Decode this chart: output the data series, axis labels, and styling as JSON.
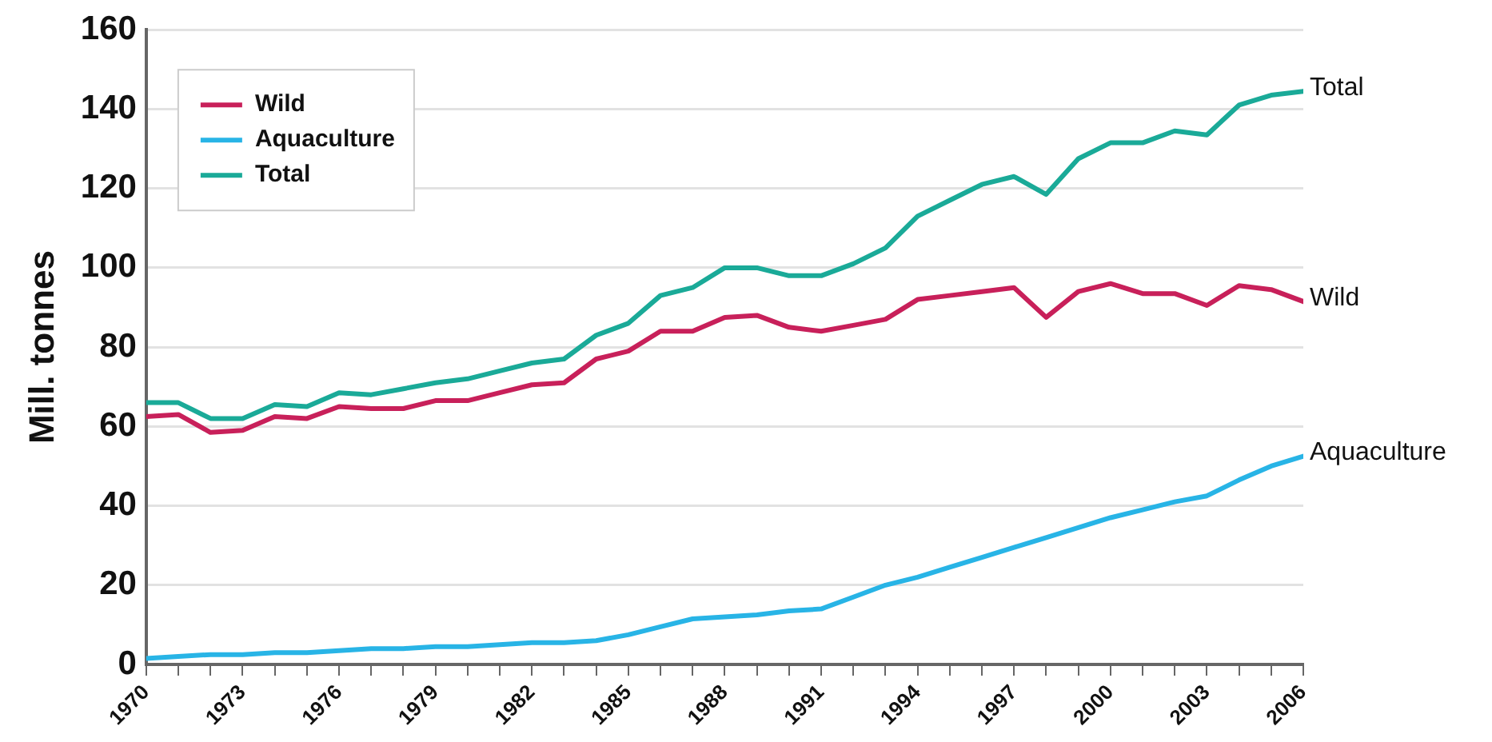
{
  "chart_data": {
    "type": "line",
    "ylabel": "Mill. tonnes",
    "x": [
      1970,
      1971,
      1972,
      1973,
      1974,
      1975,
      1976,
      1977,
      1978,
      1979,
      1980,
      1981,
      1982,
      1983,
      1984,
      1985,
      1986,
      1987,
      1988,
      1989,
      1990,
      1991,
      1992,
      1993,
      1994,
      1995,
      1996,
      1997,
      1998,
      1999,
      2000,
      2001,
      2002,
      2003,
      2004,
      2005,
      2006
    ],
    "series": [
      {
        "name": "Wild",
        "color": "#c8205a",
        "values": [
          62.5,
          63,
          58.5,
          59,
          62.5,
          62,
          65,
          64.5,
          64.5,
          66.5,
          66.5,
          68.5,
          70.5,
          71,
          77,
          79,
          84,
          84,
          87.5,
          88,
          85,
          84,
          85.5,
          87,
          92,
          93,
          94,
          95,
          87.5,
          94,
          96,
          93.5,
          93.5,
          90.5,
          95.5,
          94.5,
          91.5
        ]
      },
      {
        "name": "Aquaculture",
        "color": "#28b4e6",
        "values": [
          1.5,
          2,
          2.5,
          2.5,
          3,
          3,
          3.5,
          4,
          4,
          4.5,
          4.5,
          5,
          5.5,
          5.5,
          6,
          7.5,
          9.5,
          11.5,
          12,
          12.5,
          13.5,
          14,
          17,
          20,
          22,
          24.5,
          27,
          29.5,
          32,
          34.5,
          37,
          39,
          41,
          42.5,
          46.5,
          50,
          52.5
        ]
      },
      {
        "name": "Total",
        "color": "#1aaa98",
        "values": [
          66,
          66,
          62,
          62,
          65.5,
          65,
          68.5,
          68,
          69.5,
          71,
          72,
          74,
          76,
          77,
          83,
          86,
          93,
          95,
          100,
          100,
          98,
          98,
          101,
          105,
          113,
          117,
          121,
          123,
          118.5,
          127.5,
          131.5,
          131.5,
          134.5,
          133.5,
          141,
          143.5,
          144.5
        ]
      }
    ],
    "xlim": [
      1970,
      2006
    ],
    "xticks": [
      1970,
      {
        "value": 1971,
        "label": null
      },
      {
        "value": 1972,
        "label": null
      },
      1973,
      {
        "value": 1974,
        "label": null
      },
      {
        "value": 1975,
        "label": null
      },
      1976,
      {
        "value": 1977,
        "label": null
      },
      {
        "value": 1978,
        "label": null
      },
      1979,
      {
        "value": 1980,
        "label": null
      },
      {
        "value": 1981,
        "label": null
      },
      1982,
      {
        "value": 1983,
        "label": null
      },
      {
        "value": 1984,
        "label": null
      },
      1985,
      {
        "value": 1986,
        "label": null
      },
      {
        "value": 1987,
        "label": null
      },
      1988,
      {
        "value": 1989,
        "label": null
      },
      {
        "value": 1990,
        "label": null
      },
      1991,
      {
        "value": 1992,
        "label": null
      },
      {
        "value": 1993,
        "label": null
      },
      1994,
      {
        "value": 1995,
        "label": null
      },
      {
        "value": 1996,
        "label": null
      },
      1997,
      {
        "value": 1998,
        "label": null
      },
      {
        "value": 1999,
        "label": null
      },
      2000,
      {
        "value": 2001,
        "label": null
      },
      {
        "value": 2002,
        "label": null
      },
      2003,
      {
        "value": 2004,
        "label": null
      },
      {
        "value": 2005,
        "label": null
      },
      2006
    ],
    "ylim": [
      0,
      160
    ],
    "yticks": [
      0,
      20,
      40,
      60,
      80,
      100,
      120,
      140,
      160
    ],
    "grid": "y",
    "legend": "top left",
    "marker": "none",
    "line_style": "solid"
  }
}
